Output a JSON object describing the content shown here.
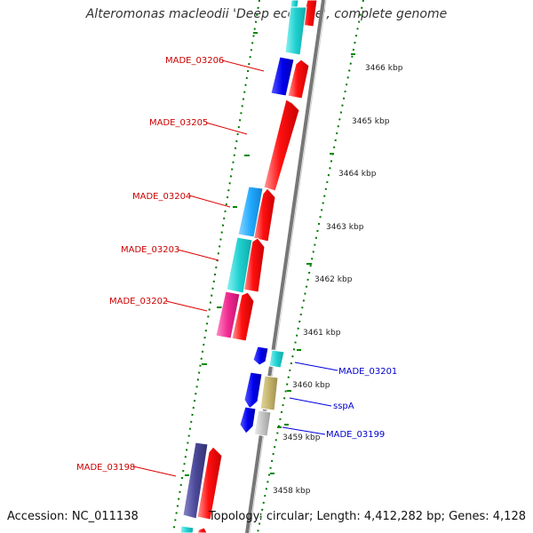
{
  "title": "Alteromonas macleodii 'Deep ecotype', complete genome",
  "accession": "Accession: NC_011138",
  "summary": "Topology: circular; Length: 4,412,282 bp; Genes: 4,128",
  "colors": {
    "forward_cds": "#ff0000",
    "reverse_cds": "#0000ee",
    "backbone": "#888888",
    "gc_track": "#007700",
    "label_red": "#cc0000",
    "label_blue": "#0000cc"
  },
  "ticks": [
    "3466 kbp",
    "3465 kbp",
    "3464 kbp",
    "3463 kbp",
    "3462 kbp",
    "3461 kbp",
    "3460 kbp",
    "3459 kbp",
    "3458 kbp"
  ],
  "labels_left": [
    "MADE_03206",
    "MADE_03205",
    "MADE_03204",
    "MADE_03203",
    "MADE_03202",
    "MADE_03198"
  ],
  "labels_right": [
    "MADE_03201",
    "sspA",
    "MADE_03199"
  ]
}
